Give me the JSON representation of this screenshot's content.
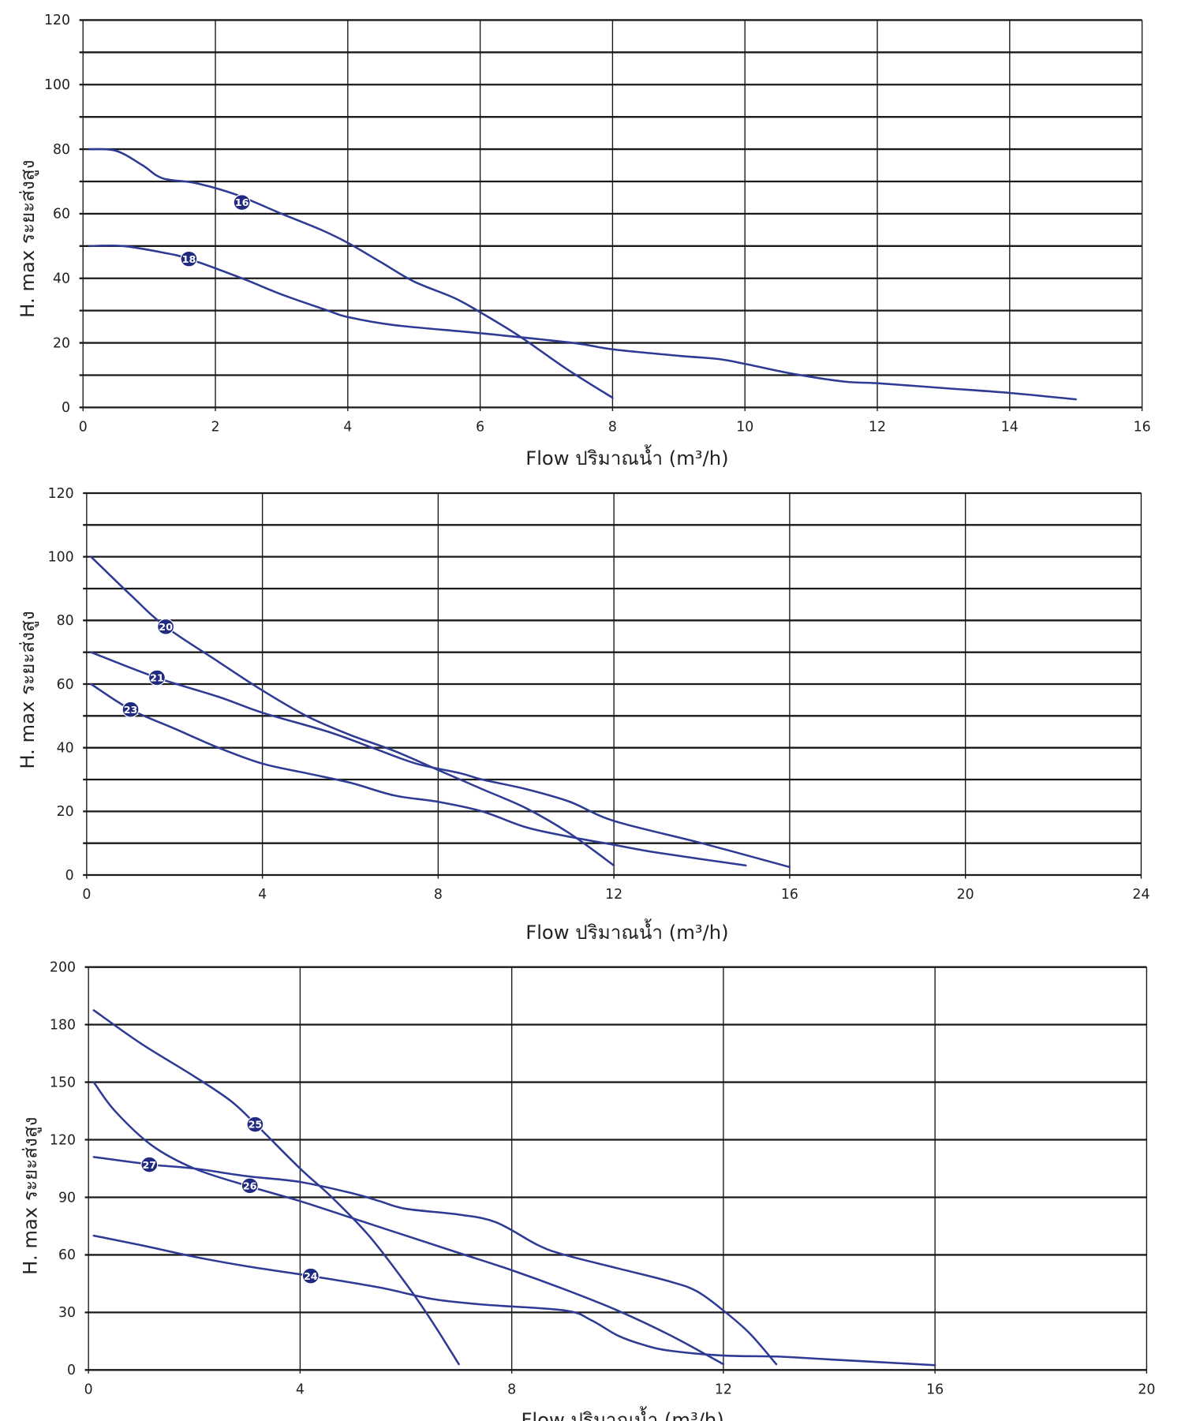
{
  "colors": {
    "curve": "#2e3a94",
    "grid": "#1a1a1a",
    "badge": "#1f2a80"
  },
  "chart_data": [
    {
      "type": "line",
      "title": "",
      "xlabel": "Flow ปริมาณน้ำ (m³/h)",
      "ylabel": "H. max ระยะส่งสูง",
      "xlim": [
        0,
        16
      ],
      "ylim": [
        0,
        120
      ],
      "xticks": [
        "0",
        "2",
        "4",
        "6",
        "8",
        "10",
        "12",
        "14",
        "16"
      ],
      "yticks": [
        "0",
        "20",
        "40",
        "60",
        "80",
        "100",
        "120"
      ],
      "ygrid": [
        0,
        10,
        20,
        30,
        40,
        50,
        60,
        70,
        80,
        90,
        100,
        110,
        120
      ],
      "xgrid": [
        0,
        2,
        4,
        6,
        8,
        10,
        12,
        14,
        16
      ],
      "grid": true,
      "series": [
        {
          "name": "16",
          "label_at": [
            2.4,
            63.5
          ],
          "x": [
            0.1,
            0.5,
            0.9,
            1.2,
            1.7,
            2.3,
            3,
            3.6,
            4,
            4.5,
            5,
            5.6,
            6,
            6.6,
            7.3,
            8
          ],
          "y": [
            80,
            79.5,
            75,
            71,
            69.5,
            66,
            60,
            55,
            51,
            45,
            39,
            34,
            29.5,
            22,
            12,
            3
          ]
        },
        {
          "name": "18",
          "label_at": [
            1.6,
            46
          ],
          "x": [
            0.1,
            0.6,
            1.2,
            1.6,
            2.4,
            3,
            3.7,
            4,
            4.7,
            6,
            7.4,
            8,
            9,
            9.6,
            10,
            10.7,
            11.5,
            12,
            13,
            14,
            15
          ],
          "y": [
            50,
            50,
            48,
            46,
            40,
            35,
            30,
            28,
            25.5,
            23,
            20,
            18,
            16,
            15,
            13.5,
            10.5,
            8,
            7.5,
            6,
            4.5,
            2.5
          ]
        }
      ]
    },
    {
      "type": "line",
      "title": "",
      "xlabel": "Flow ปริมาณน้ำ (m³/h)",
      "ylabel": "H. max ระยะส่งสูง",
      "xlim": [
        0,
        24
      ],
      "ylim": [
        0,
        120
      ],
      "xticks": [
        "0",
        "4",
        "8",
        "12",
        "16",
        "20",
        "24"
      ],
      "yticks": [
        "0",
        "20",
        "40",
        "60",
        "80",
        "100",
        "120"
      ],
      "ygrid": [
        0,
        10,
        20,
        30,
        40,
        50,
        60,
        70,
        80,
        90,
        100,
        110,
        120
      ],
      "xgrid": [
        0,
        4,
        8,
        12,
        16,
        20,
        24
      ],
      "grid": true,
      "series": [
        {
          "name": "20",
          "label_at": [
            1.8,
            78
          ],
          "x": [
            0.1,
            1,
            1.8,
            3,
            4,
            5,
            6,
            7,
            8,
            9,
            10,
            11,
            12
          ],
          "y": [
            100,
            88,
            78,
            67,
            58,
            50,
            44,
            39,
            33,
            27,
            21,
            13,
            3
          ]
        },
        {
          "name": "21",
          "label_at": [
            1.6,
            62
          ],
          "x": [
            0.1,
            1.6,
            3,
            4,
            5.5,
            6.5,
            7.5,
            8.5,
            9,
            10,
            11,
            12,
            14,
            16
          ],
          "y": [
            70,
            62,
            56,
            51,
            45,
            40,
            35,
            32,
            30,
            27,
            23,
            17,
            10,
            2.5
          ]
        },
        {
          "name": "23",
          "label_at": [
            1,
            52
          ],
          "x": [
            0.1,
            1,
            2,
            3,
            4,
            5,
            6,
            7,
            8,
            9,
            10,
            11,
            12,
            13,
            15
          ],
          "y": [
            60,
            52,
            46,
            40,
            35,
            32,
            29,
            25,
            23,
            20,
            15,
            12,
            9.5,
            7,
            3
          ]
        }
      ]
    },
    {
      "type": "line",
      "title": "",
      "xlabel": "Flow ปริมาณน้ำ (m³/h)",
      "ylabel": "H. max ระยะส่งสูง",
      "xlim": [
        0,
        20
      ],
      "ylim": [
        0,
        200
      ],
      "xticks": [
        "0",
        "4",
        "8",
        "12",
        "16",
        "20"
      ],
      "yticks": [
        "0",
        "30",
        "60",
        "90",
        "120",
        "150",
        "180",
        "200"
      ],
      "ygrid": [
        0,
        30,
        60,
        90,
        120,
        150,
        180,
        200
      ],
      "xgrid": [
        0,
        4,
        8,
        12,
        16,
        20
      ],
      "grid": true,
      "series": [
        {
          "name": "25",
          "label_at": [
            3.15,
            128
          ],
          "x": [
            0.1,
            1,
            2,
            2.7,
            3.2,
            4,
            4.6,
            5.3,
            6,
            6.5,
            7
          ],
          "y": [
            185,
            170,
            153,
            140,
            127,
            105,
            90,
            70,
            45,
            25,
            3
          ]
        },
        {
          "name": "26",
          "label_at": [
            3.05,
            96
          ],
          "x": [
            0.1,
            0.5,
            1.2,
            2,
            3,
            4,
            5,
            6,
            7,
            8,
            9,
            10,
            11,
            12
          ],
          "y": [
            150,
            135,
            117,
            105,
            96,
            88,
            79,
            70,
            61,
            52,
            42,
            31,
            18,
            3
          ]
        },
        {
          "name": "27",
          "label_at": [
            1.15,
            107
          ],
          "x": [
            0.1,
            1.2,
            2,
            3,
            4,
            5,
            5.5,
            6,
            7,
            7.7,
            8.5,
            9,
            10,
            11,
            11.5,
            12,
            12.5,
            13
          ],
          "y": [
            111,
            107,
            105,
            101,
            98,
            92,
            88,
            84,
            81,
            77,
            65,
            60,
            53,
            46,
            41,
            31,
            19,
            3
          ]
        },
        {
          "name": "24",
          "label_at": [
            4.2,
            49
          ],
          "x": [
            0.1,
            1,
            2,
            3,
            4.2,
            5.5,
            6.5,
            7.5,
            9,
            9.5,
            10,
            10.5,
            11,
            12,
            13,
            14,
            16
          ],
          "y": [
            70,
            65,
            59,
            54,
            49,
            43,
            37,
            34,
            31,
            26,
            18,
            13,
            10,
            7.5,
            7,
            5.5,
            2.5
          ]
        }
      ]
    }
  ]
}
